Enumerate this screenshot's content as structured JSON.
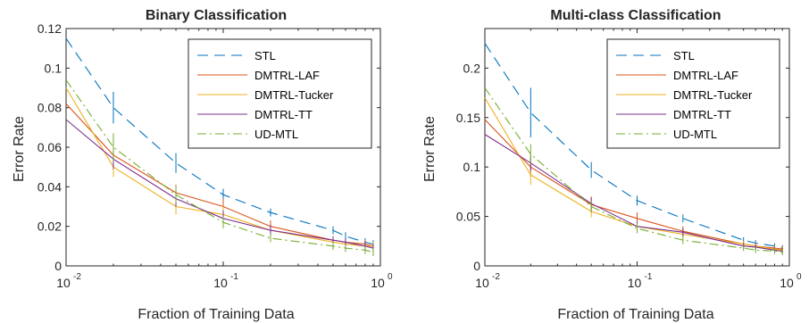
{
  "chart_data": [
    {
      "type": "line",
      "title": "Binary Classification",
      "xlabel": "Fraction of Training Data",
      "ylabel": "Error Rate",
      "xscale": "log",
      "xlim": [
        0.01,
        1
      ],
      "ylim": [
        0,
        0.12
      ],
      "xticks": [
        0.01,
        0.1,
        1
      ],
      "xtick_labels": [
        {
          "base": "10",
          "exp": "-2"
        },
        {
          "base": "10",
          "exp": "-1"
        },
        {
          "base": "10",
          "exp": "0"
        }
      ],
      "yticks": [
        0,
        0.02,
        0.04,
        0.06,
        0.08,
        0.1,
        0.12
      ],
      "ytick_labels": [
        "0",
        "0.02",
        "0.04",
        "0.06",
        "0.08",
        "0.1",
        "0.12"
      ],
      "grid": false,
      "legend_position": "top-right",
      "x": [
        0.01,
        0.02,
        0.05,
        0.1,
        0.2,
        0.5,
        0.6,
        0.8,
        0.9
      ],
      "series": [
        {
          "name": "STL",
          "color": "#0072BD",
          "dash": "dash",
          "values": [
            0.115,
            0.08,
            0.052,
            0.036,
            0.027,
            0.018,
            0.015,
            0.012,
            0.011
          ],
          "errors": [
            0.0,
            0.008,
            0.005,
            0.003,
            0.002,
            0.002,
            0.002,
            0.002,
            0.002
          ]
        },
        {
          "name": "DMTRL-LAF",
          "color": "#D95319",
          "dash": "solid",
          "values": [
            0.082,
            0.056,
            0.037,
            0.03,
            0.02,
            0.013,
            0.012,
            0.011,
            0.01
          ],
          "errors": [
            0.0,
            0.006,
            0.004,
            0.004,
            0.003,
            0.002,
            0.002,
            0.002,
            0.002
          ]
        },
        {
          "name": "DMTRL-Tucker",
          "color": "#EDB120",
          "dash": "solid",
          "values": [
            0.09,
            0.05,
            0.03,
            0.026,
            0.018,
            0.012,
            0.011,
            0.01,
            0.01
          ],
          "errors": [
            0.0,
            0.005,
            0.004,
            0.004,
            0.003,
            0.002,
            0.002,
            0.002,
            0.002
          ]
        },
        {
          "name": "DMTRL-TT",
          "color": "#7E2F8E",
          "dash": "solid",
          "values": [
            0.074,
            0.054,
            0.034,
            0.024,
            0.018,
            0.013,
            0.012,
            0.01,
            0.009
          ],
          "errors": [
            0.0,
            0.005,
            0.004,
            0.004,
            0.003,
            0.002,
            0.002,
            0.002,
            0.002
          ]
        },
        {
          "name": "UD-MTL",
          "color": "#77AC30",
          "dash": "dashdot",
          "values": [
            0.094,
            0.06,
            0.036,
            0.022,
            0.014,
            0.01,
            0.009,
            0.008,
            0.007
          ],
          "errors": [
            0.0,
            0.007,
            0.004,
            0.003,
            0.002,
            0.002,
            0.002,
            0.002,
            0.002
          ]
        }
      ]
    },
    {
      "type": "line",
      "title": "Multi-class Classification",
      "xlabel": "Fraction of Training Data",
      "ylabel": "Error Rate",
      "xscale": "log",
      "xlim": [
        0.01,
        1
      ],
      "ylim": [
        0,
        0.24
      ],
      "xticks": [
        0.01,
        0.1,
        1
      ],
      "xtick_labels": [
        {
          "base": "10",
          "exp": "-2"
        },
        {
          "base": "10",
          "exp": "-1"
        },
        {
          "base": "10",
          "exp": "0"
        }
      ],
      "yticks": [
        0,
        0.05,
        0.1,
        0.15,
        0.2
      ],
      "ytick_labels": [
        "0",
        "0.05",
        "0.1",
        "0.15",
        "0.2"
      ],
      "grid": false,
      "legend_position": "top-right",
      "x": [
        0.01,
        0.02,
        0.05,
        0.1,
        0.2,
        0.5,
        0.6,
        0.8,
        0.9
      ],
      "series": [
        {
          "name": "STL",
          "color": "#0072BD",
          "dash": "dash",
          "values": [
            0.225,
            0.155,
            0.097,
            0.066,
            0.048,
            0.026,
            0.023,
            0.02,
            0.018
          ],
          "errors": [
            0.0,
            0.025,
            0.008,
            0.005,
            0.004,
            0.003,
            0.003,
            0.003,
            0.003
          ]
        },
        {
          "name": "DMTRL-LAF",
          "color": "#D95319",
          "dash": "solid",
          "values": [
            0.148,
            0.1,
            0.062,
            0.048,
            0.035,
            0.022,
            0.02,
            0.018,
            0.017
          ],
          "errors": [
            0.0,
            0.01,
            0.008,
            0.006,
            0.005,
            0.003,
            0.003,
            0.003,
            0.003
          ]
        },
        {
          "name": "DMTRL-Tucker",
          "color": "#EDB120",
          "dash": "solid",
          "values": [
            0.17,
            0.092,
            0.055,
            0.04,
            0.032,
            0.022,
            0.02,
            0.017,
            0.016
          ],
          "errors": [
            0.0,
            0.01,
            0.006,
            0.005,
            0.004,
            0.003,
            0.003,
            0.003,
            0.003
          ]
        },
        {
          "name": "DMTRL-TT",
          "color": "#7E2F8E",
          "dash": "solid",
          "values": [
            0.133,
            0.104,
            0.063,
            0.04,
            0.034,
            0.02,
            0.019,
            0.016,
            0.015
          ],
          "errors": [
            0.0,
            0.008,
            0.006,
            0.005,
            0.004,
            0.003,
            0.003,
            0.003,
            0.003
          ]
        },
        {
          "name": "UD-MTL",
          "color": "#77AC30",
          "dash": "dashdot",
          "values": [
            0.18,
            0.113,
            0.06,
            0.038,
            0.026,
            0.018,
            0.016,
            0.015,
            0.014
          ],
          "errors": [
            0.0,
            0.01,
            0.006,
            0.005,
            0.004,
            0.003,
            0.003,
            0.003,
            0.003
          ]
        }
      ]
    }
  ]
}
